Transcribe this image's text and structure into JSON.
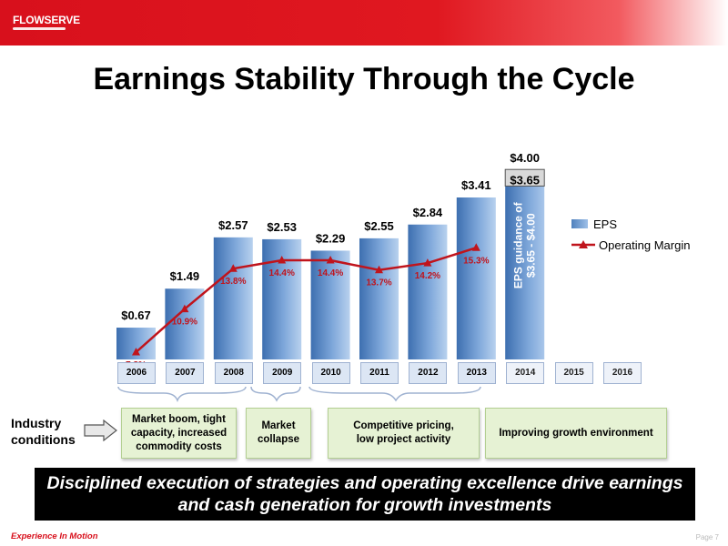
{
  "header": {
    "logo_text": "FLOWSERVE",
    "title": "Earnings Stability Through the Cycle"
  },
  "colors": {
    "brand_red": "#d8101c",
    "bar_blue": "#4f81bd",
    "line_red": "#c0141c",
    "condition_green": "#e6f2d4"
  },
  "chart_data": {
    "type": "bar",
    "categories": [
      "2006",
      "2007",
      "2008",
      "2009",
      "2010",
      "2011",
      "2012",
      "2013",
      "2014",
      "2015",
      "2016"
    ],
    "series": [
      {
        "name": "EPS",
        "type": "bar",
        "values": [
          0.67,
          1.49,
          2.57,
          2.53,
          2.29,
          2.55,
          2.84,
          3.41,
          null,
          null,
          null
        ],
        "labels": [
          "$0.67",
          "$1.49",
          "$2.57",
          "$2.53",
          "$2.29",
          "$2.55",
          "$2.84",
          "$3.41",
          null,
          null,
          null
        ]
      },
      {
        "name": "Operating Margin",
        "type": "line",
        "unit": "%",
        "values": [
          7.8,
          10.9,
          13.8,
          14.4,
          14.4,
          13.7,
          14.2,
          15.3,
          null,
          null,
          null
        ],
        "labels": [
          "7.8%",
          "10.9%",
          "13.8%",
          "14.4%",
          "14.4%",
          "13.7%",
          "14.2%",
          "15.3%",
          null,
          null,
          null
        ]
      }
    ],
    "guidance": {
      "category": "2014",
      "low": 3.65,
      "high": 4.0,
      "low_label": "$3.65",
      "high_label": "$4.00",
      "text": "EPS guidance of\n$3.65 - $4.00"
    },
    "ylim": [
      0,
      4.2
    ],
    "legend": [
      "EPS",
      "Operating Margin"
    ],
    "legend_position": "right",
    "grid": false
  },
  "conditions": {
    "label": "Industry\nconditions",
    "items": [
      {
        "text": "Market boom, tight\ncapacity, increased\ncommodity costs"
      },
      {
        "text": "Market\ncollapse"
      },
      {
        "text": "Competitive pricing,\nlow project activity"
      },
      {
        "text": "Improving growth environment"
      }
    ]
  },
  "banner": "Disciplined execution of strategies and operating excellence drive earnings\nand cash generation for growth investments",
  "footer": {
    "tagline": "Experience In Motion",
    "page": "Page 7"
  }
}
